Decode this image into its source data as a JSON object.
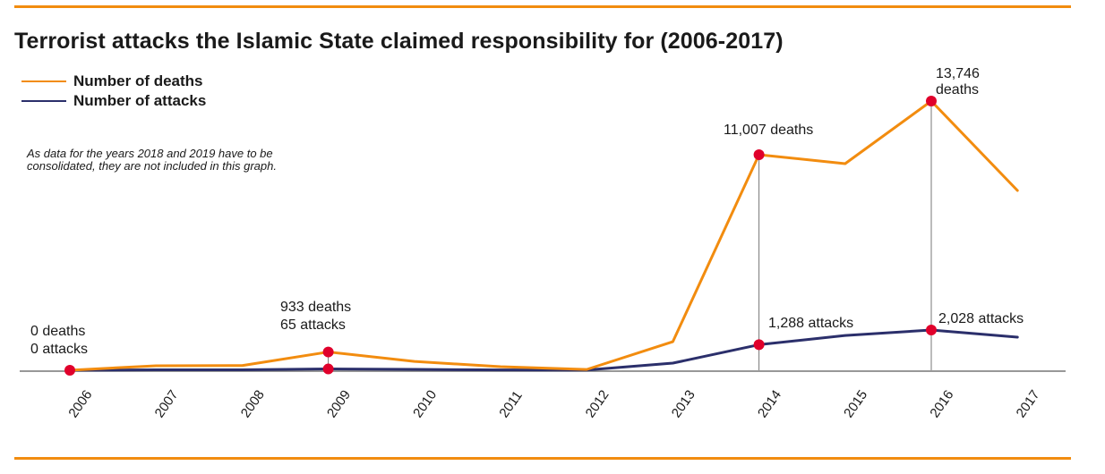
{
  "header": {
    "title": "Terrorist attacks the Islamic State claimed responsibility for (2006-2017)"
  },
  "legend": [
    {
      "label": "Number of deaths",
      "color": "#f28c0f"
    },
    {
      "label": "Number of attacks",
      "color": "#2b2f6b"
    }
  ],
  "note": "As data for the years 2018 and 2019 have to be consolidated, they are not included in this graph.",
  "colors": {
    "deaths": "#f28c0f",
    "attacks": "#2b2f6b",
    "highlight": "#e0002b",
    "axis": "#777777",
    "rule": "#f28c0f"
  },
  "chart_data": {
    "type": "line",
    "title": "Terrorist attacks the Islamic State claimed responsibility for (2006-2017)",
    "xlabel": "",
    "ylabel": "",
    "categories": [
      "2006",
      "2007",
      "2008",
      "2009",
      "2010",
      "2011",
      "2012",
      "2013",
      "2014",
      "2015",
      "2016",
      "2017"
    ],
    "series": [
      {
        "name": "Number of deaths",
        "values": [
          0,
          230,
          240,
          933,
          450,
          180,
          40,
          1460,
          11007,
          10550,
          13746,
          9180
        ]
      },
      {
        "name": "Number of attacks",
        "values": [
          0,
          20,
          25,
          65,
          45,
          15,
          10,
          360,
          1288,
          1750,
          2028,
          1670
        ]
      }
    ],
    "ylim_deaths": [
      0,
      13746
    ],
    "ylim_attacks_scale_note": "attacks share baseline, plotted on own scale",
    "grid": false,
    "legend_position": "top-left",
    "annotations": [
      {
        "year": "2006",
        "lines": [
          "0 deaths",
          "0 attacks"
        ]
      },
      {
        "year": "2009",
        "lines": [
          "933 deaths",
          "65 attacks"
        ]
      },
      {
        "year": "2014",
        "series": "deaths",
        "lines": [
          "11,007 deaths"
        ]
      },
      {
        "year": "2014",
        "series": "attacks",
        "lines": [
          "1,288 attacks"
        ]
      },
      {
        "year": "2016",
        "series": "deaths",
        "lines": [
          "13,746",
          "deaths"
        ]
      },
      {
        "year": "2016",
        "series": "attacks",
        "lines": [
          "2,028 attacks"
        ]
      }
    ],
    "highlighted_points": [
      {
        "year": "2006",
        "series": "deaths"
      },
      {
        "year": "2009",
        "series": "deaths"
      },
      {
        "year": "2009",
        "series": "attacks"
      },
      {
        "year": "2014",
        "series": "deaths"
      },
      {
        "year": "2014",
        "series": "attacks"
      },
      {
        "year": "2016",
        "series": "deaths"
      },
      {
        "year": "2016",
        "series": "attacks"
      }
    ]
  }
}
